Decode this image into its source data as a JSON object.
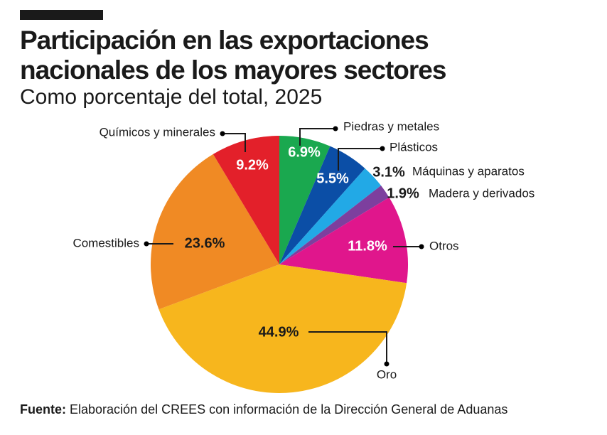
{
  "chart_data": {
    "type": "pie",
    "title": "Participación en las exportaciones nacionales de los mayores sectores",
    "subtitle": "Como porcentaje del total, 2025",
    "categories": [
      "Piedras y metales",
      "Plásticos",
      "Máquinas y aparatos",
      "Madera y derivados",
      "Otros",
      "Oro",
      "Comestibles",
      "Químicos y minerales"
    ],
    "values": [
      6.9,
      5.5,
      3.1,
      1.9,
      11.8,
      44.9,
      23.6,
      9.2
    ],
    "value_labels": [
      "6.9%",
      "5.5%",
      "3.1%",
      "1.9%",
      "11.8%",
      "44.9%",
      "23.6%",
      "9.2%"
    ],
    "colors": [
      "#1aa84f",
      "#0b4ea6",
      "#22a9e6",
      "#7d3f9e",
      "#e0168c",
      "#f7b61d",
      "#f08a24",
      "#e3202a"
    ],
    "source_label": "Fuente:",
    "source": "Elaboración del CREES con información de la Dirección General de Aduanas"
  }
}
